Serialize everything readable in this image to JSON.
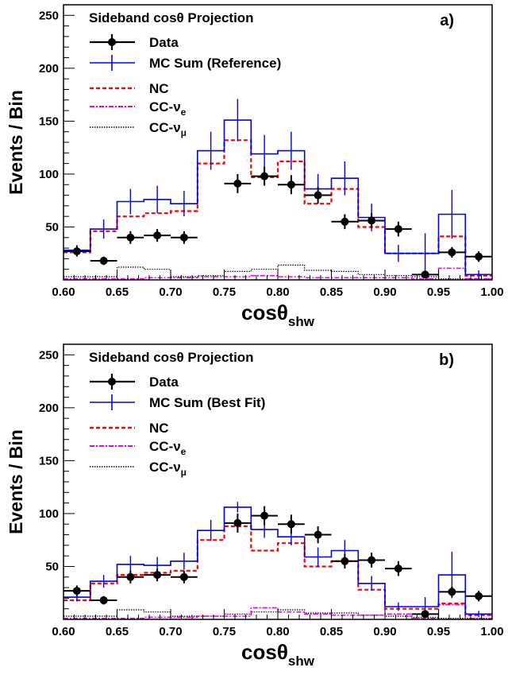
{
  "chart_data": [
    {
      "type": "histogram",
      "panel_label": "a)",
      "legend_title": "Sideband cosθ Projection",
      "xlabel": {
        "main": "cosθ",
        "sub": "shw"
      },
      "ylabel": "Events / Bin",
      "xlim": [
        0.6,
        1.0
      ],
      "ylim": [
        0,
        260
      ],
      "xticks": [
        0.6,
        0.65,
        0.7,
        0.75,
        0.8,
        0.85,
        0.9,
        0.95,
        1.0
      ],
      "xtick_labels": [
        "0.60",
        "0.65",
        "0.70",
        "0.75",
        "0.80",
        "0.85",
        "0.90",
        "0.95",
        "1.00"
      ],
      "yticks": [
        50,
        100,
        150,
        200,
        250
      ],
      "ytick_labels": [
        "50",
        "100",
        "150",
        "200",
        "250"
      ],
      "legend": [
        {
          "label": "Data",
          "style": "data"
        },
        {
          "label": "MC Sum (Reference)",
          "style": "mc"
        },
        {
          "label": "NC",
          "style": "nc"
        },
        {
          "label": "CC-ν",
          "sub": "e",
          "style": "cce"
        },
        {
          "label": "CC-ν",
          "sub": "μ",
          "style": "ccmu"
        }
      ],
      "bin_edges": [
        0.6,
        0.625,
        0.65,
        0.675,
        0.7,
        0.725,
        0.75,
        0.775,
        0.8,
        0.825,
        0.85,
        0.875,
        0.9,
        0.925,
        0.95,
        0.975,
        1.0
      ],
      "data_points": {
        "x": [
          0.6125,
          0.6375,
          0.6625,
          0.6875,
          0.7125,
          0.7375,
          0.7625,
          0.7875,
          0.8125,
          0.8375,
          0.8625,
          0.8875,
          0.9125,
          0.9375,
          0.9625,
          0.9875
        ],
        "y": [
          27,
          18,
          40,
          42,
          40,
          null,
          91,
          98,
          90,
          80,
          55,
          56,
          48,
          5,
          26,
          22
        ],
        "yerr": [
          5,
          4,
          6,
          6,
          6,
          null,
          9,
          9,
          9,
          8,
          7,
          7,
          7,
          2,
          5,
          5
        ]
      },
      "series": [
        {
          "name": "MC Sum (Reference)",
          "color": "#0000ee",
          "values": [
            28,
            48,
            74,
            76,
            72,
            122,
            151,
            119,
            122,
            86,
            96,
            59,
            25,
            25,
            62,
            5
          ],
          "errors": [
            5,
            9,
            12,
            13,
            12,
            18,
            20,
            18,
            18,
            14,
            16,
            13,
            8,
            19,
            23,
            4
          ]
        },
        {
          "name": "NC",
          "color": "#ff0000",
          "values": [
            26,
            46,
            60,
            63,
            65,
            110,
            132,
            97,
            112,
            72,
            86,
            50,
            25,
            25,
            41,
            4
          ]
        },
        {
          "name": "CC-νe",
          "color": "#ee00ee",
          "values": [
            1,
            1,
            1,
            2,
            2,
            3,
            3,
            4,
            3,
            2,
            2,
            2,
            2,
            1,
            11,
            1
          ]
        },
        {
          "name": "CC-νμ",
          "color": "#000000",
          "values": [
            3,
            3,
            12,
            10,
            3,
            4,
            8,
            10,
            14,
            9,
            8,
            5,
            4,
            3,
            1,
            1
          ]
        }
      ]
    },
    {
      "type": "histogram",
      "panel_label": "b)",
      "legend_title": "Sideband cosθ Projection",
      "xlabel": {
        "main": "cosθ",
        "sub": "shw"
      },
      "ylabel": "Events / Bin",
      "xlim": [
        0.6,
        1.0
      ],
      "ylim": [
        0,
        260
      ],
      "xticks": [
        0.6,
        0.65,
        0.7,
        0.75,
        0.8,
        0.85,
        0.9,
        0.95,
        1.0
      ],
      "xtick_labels": [
        "0.60",
        "0.65",
        "0.70",
        "0.75",
        "0.80",
        "0.85",
        "0.90",
        "0.95",
        "1.00"
      ],
      "yticks": [
        50,
        100,
        150,
        200,
        250
      ],
      "ytick_labels": [
        "50",
        "100",
        "150",
        "200",
        "250"
      ],
      "legend": [
        {
          "label": "Data",
          "style": "data"
        },
        {
          "label": "MC Sum (Best Fit)",
          "style": "mc"
        },
        {
          "label": "NC",
          "style": "nc"
        },
        {
          "label": "CC-ν",
          "sub": "e",
          "style": "cce"
        },
        {
          "label": "CC-ν",
          "sub": "μ",
          "style": "ccmu"
        }
      ],
      "bin_edges": [
        0.6,
        0.625,
        0.65,
        0.675,
        0.7,
        0.725,
        0.75,
        0.775,
        0.8,
        0.825,
        0.85,
        0.875,
        0.9,
        0.925,
        0.95,
        0.975,
        1.0
      ],
      "data_points": {
        "x": [
          0.6125,
          0.6375,
          0.6625,
          0.6875,
          0.7125,
          0.7375,
          0.7625,
          0.7875,
          0.8125,
          0.8375,
          0.8625,
          0.8875,
          0.9125,
          0.9375,
          0.9625,
          0.9875
        ],
        "y": [
          27,
          18,
          40,
          42,
          40,
          null,
          91,
          98,
          90,
          80,
          55,
          56,
          48,
          5,
          26,
          22
        ],
        "yerr": [
          5,
          4,
          6,
          6,
          6,
          null,
          9,
          9,
          9,
          8,
          7,
          7,
          7,
          2,
          5,
          5
        ]
      },
      "series": [
        {
          "name": "MC Sum (Best Fit)",
          "color": "#0000ee",
          "values": [
            21,
            36,
            52,
            51,
            55,
            84,
            106,
            85,
            78,
            59,
            65,
            34,
            12,
            12,
            42,
            5
          ],
          "errors": [
            4,
            6,
            8,
            8,
            8,
            10,
            5,
            8,
            8,
            9,
            10,
            7,
            4,
            9,
            22,
            3
          ]
        },
        {
          "name": "NC",
          "color": "#ff0000",
          "values": [
            18,
            34,
            42,
            44,
            46,
            75,
            88,
            65,
            72,
            50,
            55,
            28,
            10,
            10,
            15,
            4
          ]
        },
        {
          "name": "CC-νe",
          "color": "#ee00ee",
          "values": [
            1,
            1,
            1,
            2,
            2,
            3,
            3,
            11,
            7,
            5,
            4,
            4,
            5,
            1,
            14,
            1
          ]
        },
        {
          "name": "CC-νμ",
          "color": "#000000",
          "values": [
            3,
            3,
            9,
            7,
            3,
            3,
            5,
            7,
            9,
            6,
            6,
            4,
            3,
            2,
            1,
            1
          ]
        }
      ]
    }
  ]
}
